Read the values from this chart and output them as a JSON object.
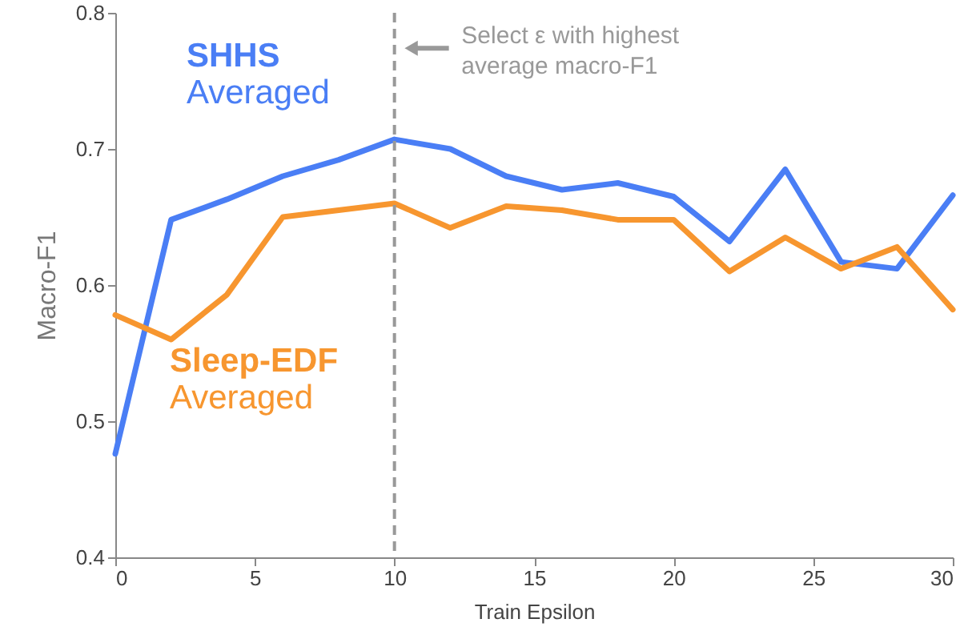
{
  "chart_data": {
    "type": "line",
    "xlabel": "Train Epsilon",
    "ylabel": "Macro-F1",
    "x": [
      0,
      2,
      4,
      6,
      8,
      10,
      12,
      14,
      16,
      18,
      20,
      22,
      24,
      26,
      28,
      30
    ],
    "series": [
      {
        "name": "SHHS Averaged",
        "color": "#4a7ef5",
        "values": [
          0.476,
          0.648,
          0.663,
          0.68,
          0.692,
          0.707,
          0.7,
          0.68,
          0.67,
          0.675,
          0.665,
          0.632,
          0.685,
          0.617,
          0.612,
          0.666
        ]
      },
      {
        "name": "Sleep-EDF Averaged",
        "color": "#f7962f",
        "values": [
          0.578,
          0.56,
          0.593,
          0.65,
          0.655,
          0.66,
          0.642,
          0.658,
          0.655,
          0.648,
          0.648,
          0.61,
          0.635,
          0.612,
          0.628,
          0.582
        ]
      }
    ],
    "xlim": [
      0,
      30
    ],
    "xticks": [
      0,
      5,
      10,
      15,
      20,
      25,
      30
    ],
    "ylim": [
      0.4,
      0.8
    ],
    "yticks": [
      {
        "value": 0.4,
        "label": "0.4"
      },
      {
        "value": 0.5,
        "label": "0.5"
      },
      {
        "value": 0.6,
        "label": "0.6"
      },
      {
        "value": 0.7,
        "label": "0.7"
      },
      {
        "value": 0.8,
        "label": "0.8"
      }
    ],
    "ref_lines": [
      {
        "axis": "x",
        "value": 10,
        "label": "Select ε with highest average macro-F1",
        "color": "#999999",
        "line_style": "dashed"
      }
    ],
    "grid": false,
    "marker": "none",
    "line_style": "solid"
  }
}
